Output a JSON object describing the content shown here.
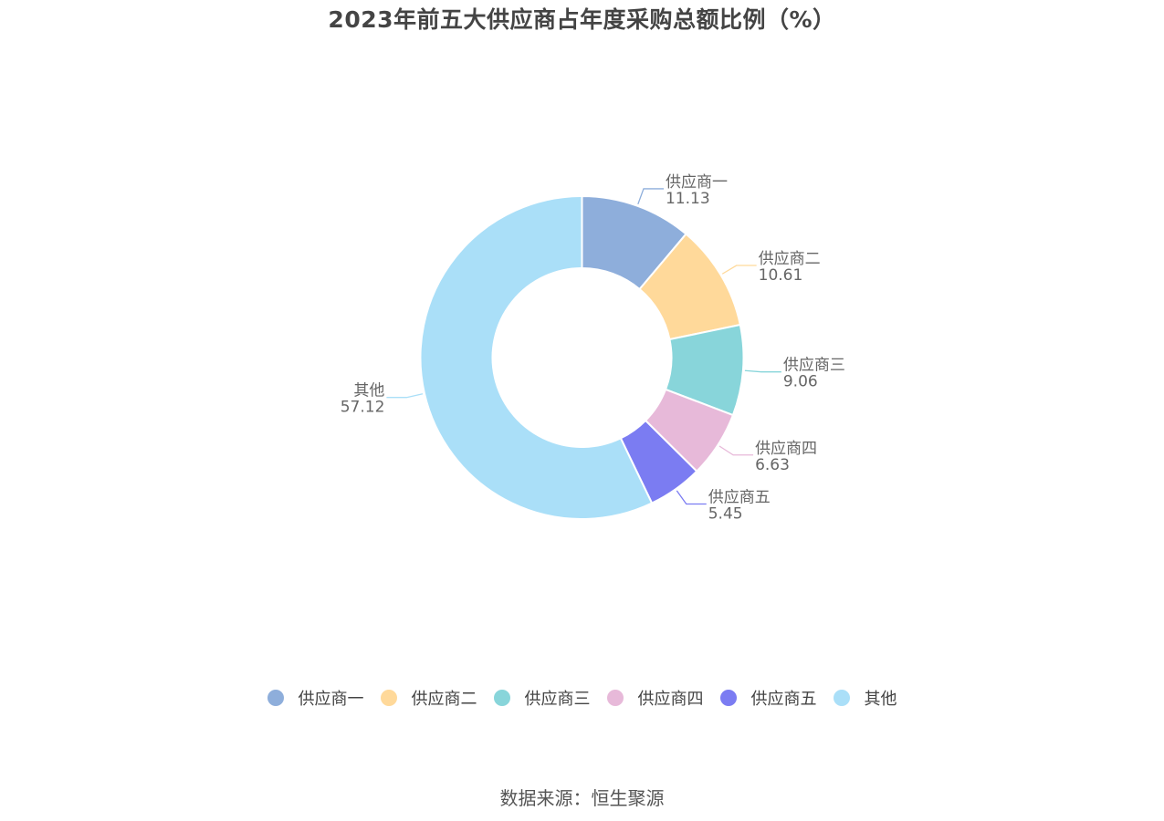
{
  "chart_data": {
    "type": "pie",
    "title": "2023年前五大供应商占年度采购总额比例（%）",
    "donut": true,
    "slices": [
      {
        "label": "供应商一",
        "value": 11.13,
        "value_text": "11.13",
        "color": "#8eaedb"
      },
      {
        "label": "供应商二",
        "value": 10.61,
        "value_text": "10.61",
        "color": "#ffd99a"
      },
      {
        "label": "供应商三",
        "value": 9.06,
        "value_text": "9.06",
        "color": "#88d5da"
      },
      {
        "label": "供应商四",
        "value": 6.63,
        "value_text": "6.63",
        "color": "#e7b9d9"
      },
      {
        "label": "供应商五",
        "value": 5.45,
        "value_text": "5.45",
        "color": "#7b7cf2"
      },
      {
        "label": "其他",
        "value": 57.12,
        "value_text": "57.12",
        "color": "#aadff8"
      }
    ],
    "legend_position": "bottom",
    "source": "数据来源：恒生聚源"
  }
}
